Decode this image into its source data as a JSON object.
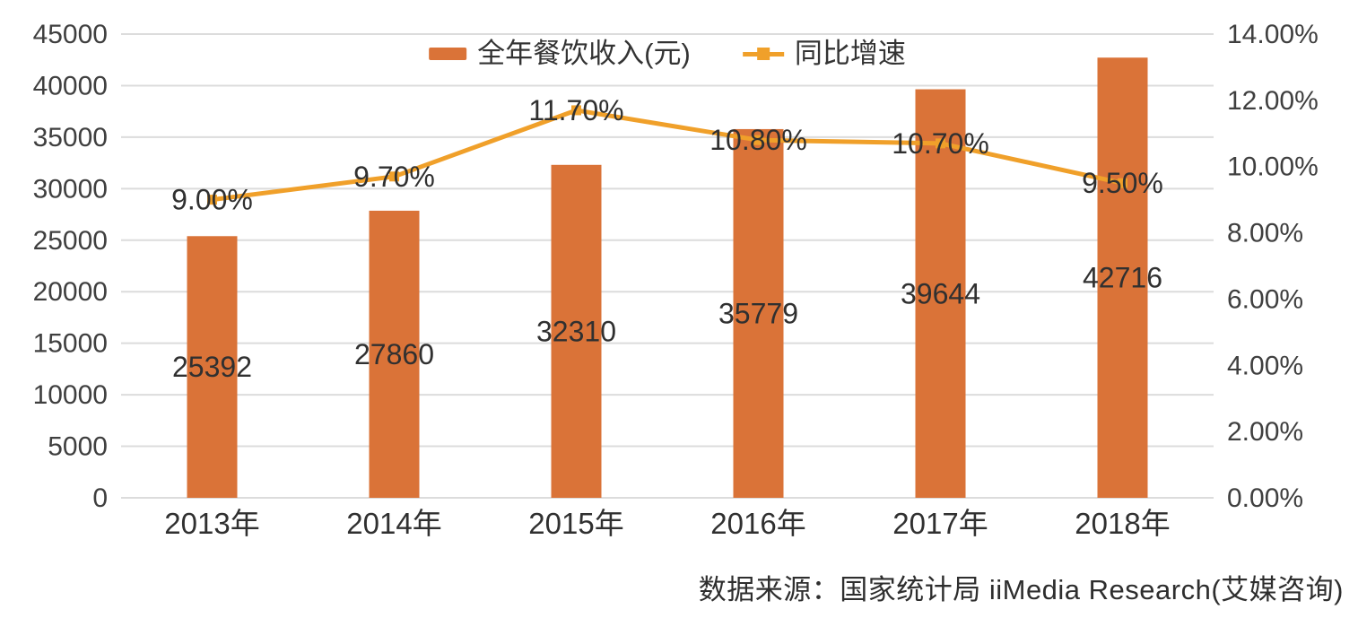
{
  "chart_data": {
    "type": "bar",
    "subtype": "combo-bar-line",
    "title": "",
    "categories": [
      "2013年",
      "2014年",
      "2015年",
      "2016年",
      "2017年",
      "2018年"
    ],
    "series": [
      {
        "name": "全年餐饮收入(元)",
        "type": "bar",
        "axis": "left",
        "values": [
          25392,
          27860,
          32310,
          35779,
          39644,
          42716
        ],
        "labels": [
          "25392",
          "27860",
          "32310",
          "35779",
          "39644",
          "42716"
        ],
        "color": "#DA7338"
      },
      {
        "name": "同比增速",
        "type": "line",
        "axis": "right",
        "values": [
          9.0,
          9.7,
          11.7,
          10.8,
          10.7,
          9.5
        ],
        "labels": [
          "9.00%",
          "9.70%",
          "11.70%",
          "10.80%",
          "10.70%",
          "9.50%"
        ],
        "color": "#F0A02A"
      }
    ],
    "left_axis": {
      "min": 0,
      "max": 45000,
      "step": 5000,
      "ticks": [
        "45000",
        "40000",
        "35000",
        "30000",
        "25000",
        "20000",
        "15000",
        "10000",
        "5000",
        "0"
      ]
    },
    "right_axis": {
      "min": 0,
      "max": 14,
      "step": 2,
      "ticks": [
        "14.00%",
        "12.00%",
        "10.00%",
        "8.00%",
        "6.00%",
        "4.00%",
        "2.00%",
        "0.00%"
      ]
    },
    "grid": true,
    "legend_position": "top-center"
  },
  "legend": {
    "bar_label": "全年餐饮收入(元)",
    "line_label": "同比增速"
  },
  "source": {
    "text": "数据来源：国家统计局 iiMedia Research(艾媒咨询)"
  },
  "colors": {
    "bar": "#DA7338",
    "line": "#F0A02A",
    "grid": "#DCDCDC",
    "axis_text": "#3f3f3f",
    "label_text": "#303030"
  }
}
